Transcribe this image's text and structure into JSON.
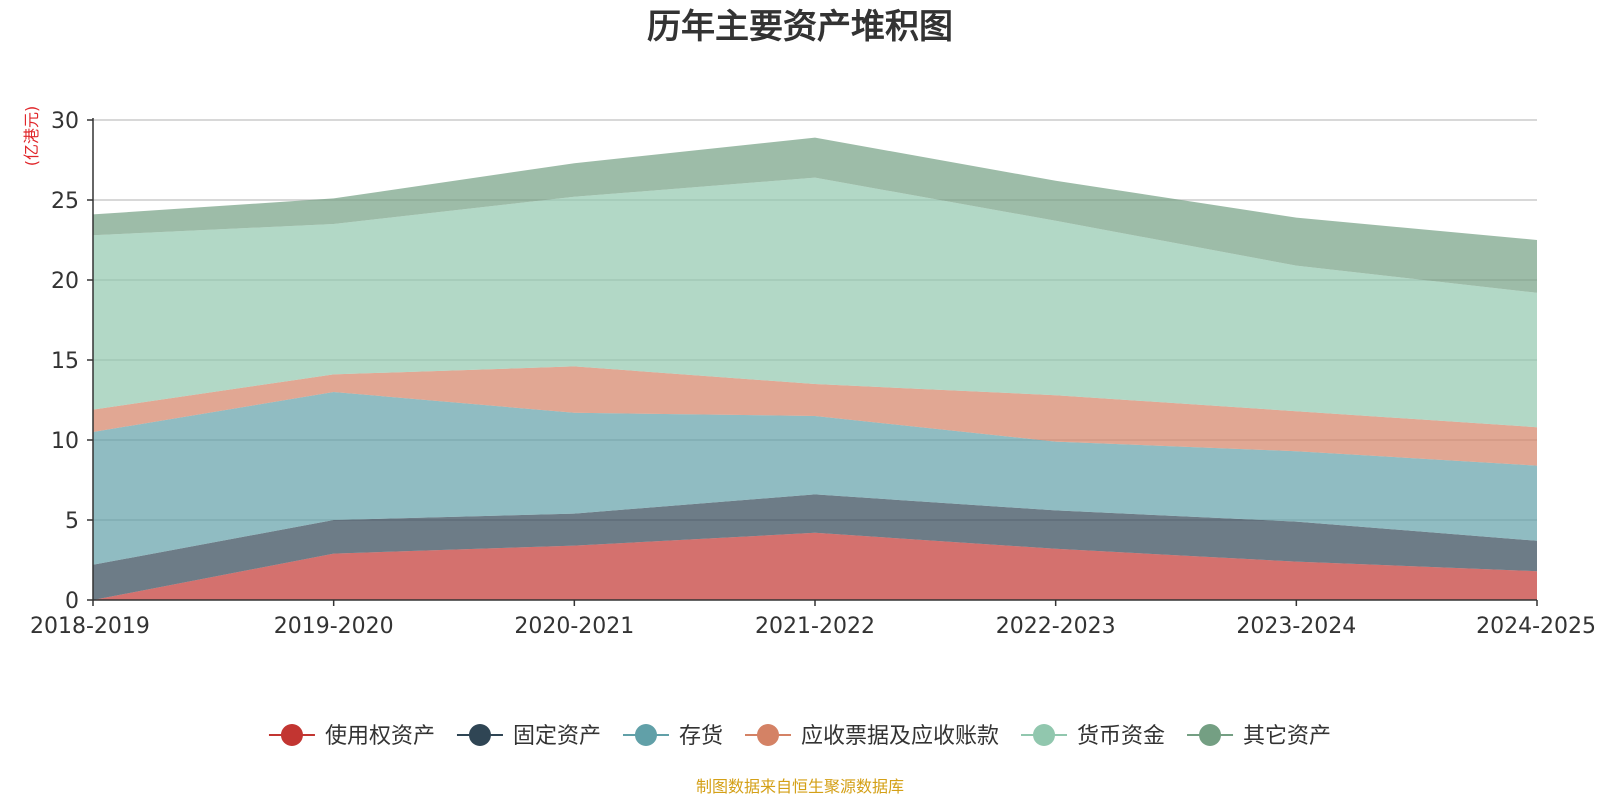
{
  "chart_data": {
    "type": "area",
    "stacked": true,
    "title": "历年主要资产堆积图",
    "ylabel": "(亿港元)",
    "xlabel": "",
    "categories": [
      "2018-2019",
      "2019-2020",
      "2020-2021",
      "2021-2022",
      "2022-2023",
      "2023-2024",
      "2024-2025"
    ],
    "ylim": [
      0,
      30
    ],
    "yticks": [
      0,
      5,
      10,
      15,
      20,
      25,
      30
    ],
    "grid": true,
    "legend_position": "bottom",
    "series": [
      {
        "name": "使用权资产",
        "color": "#c23531",
        "values": [
          0.0,
          2.9,
          3.4,
          4.2,
          3.2,
          2.4,
          1.8
        ]
      },
      {
        "name": "固定资产",
        "color": "#2f4554",
        "values": [
          2.2,
          2.1,
          2.0,
          2.4,
          2.4,
          2.5,
          1.9
        ]
      },
      {
        "name": "存货",
        "color": "#61a0a8",
        "values": [
          8.3,
          8.0,
          6.3,
          4.9,
          4.3,
          4.4,
          4.7
        ]
      },
      {
        "name": "应收票据及应收账款",
        "color": "#d48265",
        "values": [
          1.4,
          1.1,
          2.9,
          2.0,
          2.9,
          2.5,
          2.4
        ]
      },
      {
        "name": "货币资金",
        "color": "#91c7ae",
        "values": [
          10.9,
          9.4,
          10.6,
          12.9,
          10.9,
          9.1,
          8.4
        ]
      },
      {
        "name": "其它资产",
        "color": "#749f83",
        "values": [
          1.3,
          1.6,
          2.1,
          2.5,
          2.5,
          3.0,
          3.3
        ]
      }
    ],
    "source_note": "制图数据来自恒生聚源数据库",
    "colors": {
      "title": "#333333",
      "axis": "#333333",
      "grid": "#cccccc",
      "unit": "#e0262a",
      "source": "#d4a017"
    }
  }
}
